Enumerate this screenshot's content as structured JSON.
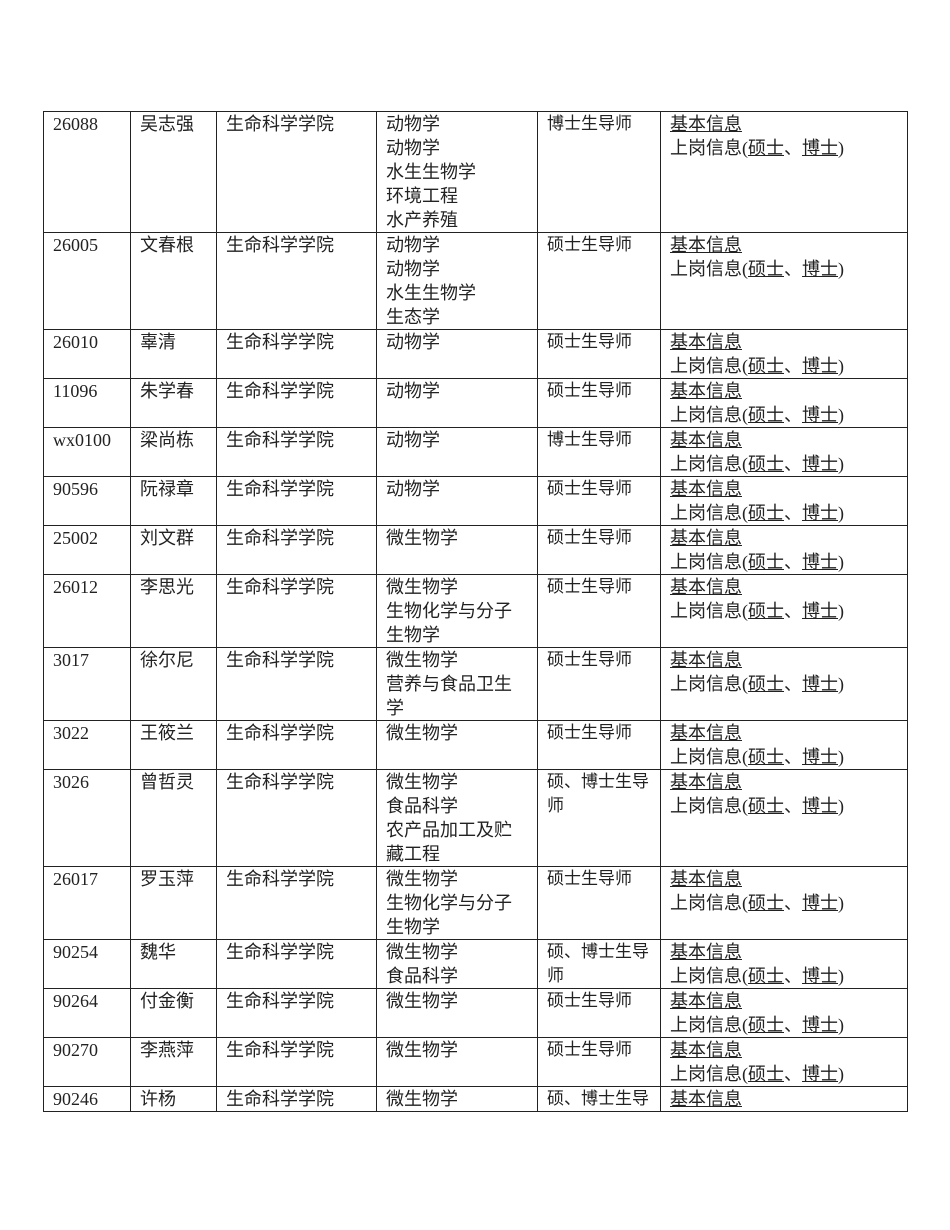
{
  "table": {
    "rows": [
      {
        "id": "26088",
        "name": "吴志强",
        "college": "生命科学学院",
        "majors": [
          "动物学",
          "动物学",
          "水生生物学",
          "环境工程",
          "水产养殖"
        ],
        "role": "博士生导师",
        "info": "基本信息",
        "post": [
          "上岗信息(",
          "硕士",
          "、",
          "博士",
          ")"
        ]
      },
      {
        "id": "26005",
        "name": "文春根",
        "college": "生命科学学院",
        "majors": [
          "动物学",
          "动物学",
          "水生生物学",
          "生态学"
        ],
        "role": "硕士生导师",
        "info": "基本信息",
        "post": [
          "上岗信息(",
          "硕士",
          "、",
          "博士",
          ")"
        ]
      },
      {
        "id": "26010",
        "name": "辜清",
        "college": "生命科学学院",
        "majors": [
          "动物学"
        ],
        "role": "硕士生导师",
        "info": "基本信息",
        "post": [
          "上岗信息(",
          "硕士",
          "、",
          "博士",
          ")"
        ]
      },
      {
        "id": "11096",
        "name": "朱学春",
        "college": "生命科学学院",
        "majors": [
          "动物学"
        ],
        "role": "硕士生导师",
        "info": "基本信息",
        "post": [
          "上岗信息(",
          "硕士",
          "、",
          "博士",
          ")"
        ]
      },
      {
        "id": "wx0100",
        "name": "梁尚栋",
        "college": "生命科学学院",
        "majors": [
          "动物学"
        ],
        "role": "博士生导师",
        "info": "基本信息",
        "post": [
          "上岗信息(",
          "硕士",
          "、",
          "博士",
          ")"
        ]
      },
      {
        "id": "90596",
        "name": "阮禄章",
        "college": "生命科学学院",
        "majors": [
          "动物学"
        ],
        "role": "硕士生导师",
        "info": "基本信息",
        "post": [
          "上岗信息(",
          "硕士",
          "、",
          "博士",
          ")"
        ]
      },
      {
        "id": "25002",
        "name": "刘文群",
        "college": "生命科学学院",
        "majors": [
          "微生物学"
        ],
        "role": "硕士生导师",
        "info": "基本信息",
        "post": [
          "上岗信息(",
          "硕士",
          "、",
          "博士",
          ")"
        ]
      },
      {
        "id": "26012",
        "name": "李思光",
        "college": "生命科学学院",
        "majors": [
          "微生物学",
          "生物化学与分子生物学"
        ],
        "role": "硕士生导师",
        "info": "基本信息",
        "post": [
          "上岗信息(",
          "硕士",
          "、",
          "博士",
          ")"
        ]
      },
      {
        "id": "3017",
        "name": "徐尔尼",
        "college": "生命科学学院",
        "majors": [
          "微生物学",
          "营养与食品卫生学"
        ],
        "role": "硕士生导师",
        "info": "基本信息",
        "post": [
          "上岗信息(",
          "硕士",
          "、",
          "博士",
          ")"
        ]
      },
      {
        "id": "3022",
        "name": "王筱兰",
        "college": "生命科学学院",
        "majors": [
          "微生物学"
        ],
        "role": "硕士生导师",
        "info": "基本信息",
        "post": [
          "上岗信息(",
          "硕士",
          "、",
          "博士",
          ")"
        ]
      },
      {
        "id": "3026",
        "name": "曾哲灵",
        "college": "生命科学学院",
        "majors": [
          "微生物学",
          "食品科学",
          "农产品加工及贮藏工程"
        ],
        "role": "硕、博士生导师",
        "info": "基本信息",
        "post": [
          "上岗信息(",
          "硕士",
          "、",
          "博士",
          ")"
        ]
      },
      {
        "id": "26017",
        "name": "罗玉萍",
        "college": "生命科学学院",
        "majors": [
          "微生物学",
          "生物化学与分子生物学"
        ],
        "role": "硕士生导师",
        "info": "基本信息",
        "post": [
          "上岗信息(",
          "硕士",
          "、",
          "博士",
          ")"
        ]
      },
      {
        "id": "90254",
        "name": "魏华",
        "college": "生命科学学院",
        "majors": [
          "微生物学",
          "食品科学"
        ],
        "role": "硕、博士生导师",
        "info": "基本信息",
        "post": [
          "上岗信息(",
          "硕士",
          "、",
          "博士",
          ")"
        ]
      },
      {
        "id": "90264",
        "name": "付金衡",
        "college": "生命科学学院",
        "majors": [
          "微生物学"
        ],
        "role": "硕士生导师",
        "info": "基本信息",
        "post": [
          "上岗信息(",
          "硕士",
          "、",
          "博士",
          ")"
        ]
      },
      {
        "id": "90270",
        "name": "李燕萍",
        "college": "生命科学学院",
        "majors": [
          "微生物学"
        ],
        "role": "硕士生导师",
        "info": "基本信息",
        "post": [
          "上岗信息(",
          "硕士",
          "、",
          "博士",
          ")"
        ]
      },
      {
        "id": "90246",
        "name": "许杨",
        "college": "生命科学学院",
        "majors": [
          "微生物学"
        ],
        "role": "硕、博士生导",
        "info": "基本信息"
      }
    ]
  }
}
